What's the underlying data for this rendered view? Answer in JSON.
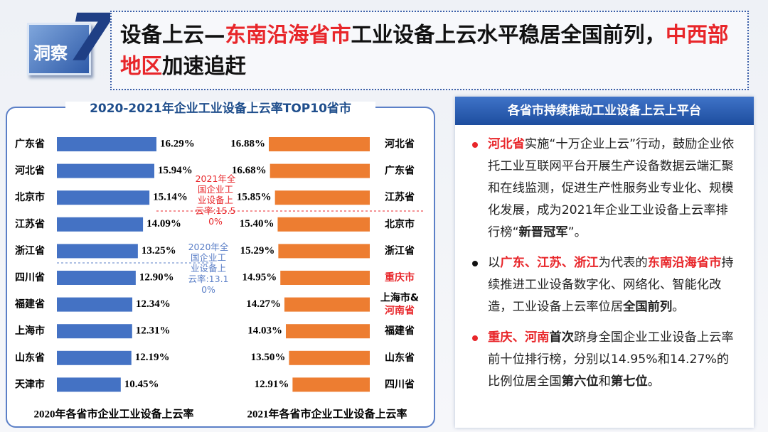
{
  "header": {
    "badge": "洞察",
    "badge_number": "7",
    "title_runs": [
      {
        "text": "设备上云—",
        "style": "plain"
      },
      {
        "text": "东南沿海省市",
        "style": "red"
      },
      {
        "text": "工业设备上云水平稳居全国前列，",
        "style": "plain"
      },
      {
        "text": "中西部地区",
        "style": "red"
      },
      {
        "text": "加速追赶",
        "style": "plain"
      }
    ]
  },
  "chart_title": "2020-2021年企业工业设备上云率TOP10省市",
  "chart_data": [
    {
      "type": "bar",
      "orientation": "horizontal",
      "direction": "right",
      "x_label": "2020年各省市企业工业设备上云率",
      "categories": [
        "广东省",
        "河北省",
        "北京市",
        "江苏省",
        "浙江省",
        "四川省",
        "福建省",
        "上海市",
        "山东省",
        "天津市"
      ],
      "values": [
        16.29,
        15.94,
        15.14,
        14.09,
        13.25,
        12.9,
        12.34,
        12.31,
        12.19,
        10.45
      ],
      "value_labels": [
        "16.29%",
        "15.94%",
        "15.14%",
        "14.09%",
        "13.25%",
        "12.90%",
        "12.34%",
        "12.31%",
        "12.19%",
        "10.45%"
      ],
      "color": "#4472c4",
      "annotation": "2020年全国企业工业设备上云率:13.10%",
      "annotation_color": "#5b7fc7"
    },
    {
      "type": "bar",
      "orientation": "horizontal",
      "direction": "left",
      "x_label": "2021年各省市企业工业设备上云率",
      "categories": [
        "河北省",
        "广东省",
        "江苏省",
        "北京市",
        "浙江省",
        "重庆市",
        "上海市&河南省",
        "福建省",
        "山东省",
        "四川省"
      ],
      "values": [
        16.88,
        16.68,
        15.85,
        15.4,
        15.29,
        14.95,
        14.27,
        14.03,
        13.5,
        12.91
      ],
      "value_labels": [
        "16.88%",
        "16.68%",
        "15.85%",
        "15.40%",
        "15.29%",
        "14.95%",
        "14.27%",
        "14.03%",
        "13.50%",
        "12.91%"
      ],
      "color": "#ed7d31",
      "highlight_indices": [
        5,
        6
      ],
      "highlight_color": "#e8262a",
      "annotation": "2021年全国企业工业设备上云率:15.50%",
      "annotation_color": "#e8262a"
    }
  ],
  "panel": {
    "heading": "各省市持续推动工业设备上云上平台",
    "bullets": [
      {
        "dot": "red",
        "runs": [
          {
            "text": "河北省",
            "style": "red"
          },
          {
            "text": "实施“十万企业上云”行动，鼓励企业依托工业互联网平台开展生产设备数据云端汇聚和在线监测，促进生产性服务业专业化、规模化发展，成为2021年企业工业设备上云率排行榜“",
            "style": "plain"
          },
          {
            "text": "新晋冠军",
            "style": "bold"
          },
          {
            "text": "”。",
            "style": "plain"
          }
        ]
      },
      {
        "dot": "black",
        "runs": [
          {
            "text": "以",
            "style": "plain"
          },
          {
            "text": "广东、江苏、浙江",
            "style": "red"
          },
          {
            "text": "为代表的",
            "style": "plain"
          },
          {
            "text": "东南沿海省市",
            "style": "red"
          },
          {
            "text": "持续推进工业设备数字化、网络化、智能化改造，工业设备上云率位居",
            "style": "plain"
          },
          {
            "text": "全国前列",
            "style": "bold"
          },
          {
            "text": "。",
            "style": "plain"
          }
        ]
      },
      {
        "dot": "red",
        "runs": [
          {
            "text": "重庆、河南",
            "style": "red"
          },
          {
            "text": "首次",
            "style": "bold"
          },
          {
            "text": "跻身全国企业工业设备上云率前十位排行榜，分别以14.95%和14.27%的比例位居全国",
            "style": "plain"
          },
          {
            "text": "第六位",
            "style": "bold"
          },
          {
            "text": "和",
            "style": "plain"
          },
          {
            "text": "第七位",
            "style": "bold"
          },
          {
            "text": "。",
            "style": "plain"
          }
        ]
      }
    ]
  }
}
